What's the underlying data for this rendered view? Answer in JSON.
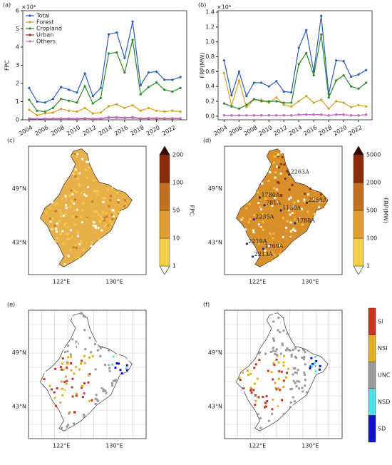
{
  "chart_data": [
    {
      "type": "line",
      "panel": "(a)",
      "ylabel": "FPC",
      "multiplier": "×10⁴",
      "x": [
        2004,
        2005,
        2006,
        2007,
        2008,
        2009,
        2010,
        2011,
        2012,
        2013,
        2014,
        2015,
        2016,
        2017,
        2018,
        2019,
        2020,
        2021,
        2022,
        2023
      ],
      "xlim": [
        2003.2,
        2023.8
      ],
      "xticks": [
        2004,
        2006,
        2008,
        2010,
        2012,
        2014,
        2016,
        2018,
        2020,
        2022
      ],
      "ylim": [
        0,
        6
      ],
      "yticks": [
        0,
        1,
        2,
        3,
        4,
        5,
        6
      ],
      "legend": "upper left",
      "series": [
        {
          "name": "Total",
          "color": "#2a5cbf",
          "values": [
            1.75,
            1.0,
            0.95,
            1.15,
            1.8,
            1.65,
            1.5,
            2.55,
            1.3,
            1.75,
            4.7,
            4.8,
            3.4,
            5.4,
            1.9,
            2.6,
            2.65,
            2.2,
            2.2,
            2.35
          ]
        },
        {
          "name": "Forest",
          "color": "#d4a020",
          "values": [
            0.55,
            0.25,
            0.35,
            0.4,
            0.6,
            0.5,
            0.45,
            0.65,
            0.35,
            0.4,
            0.75,
            0.85,
            0.65,
            0.8,
            0.5,
            0.65,
            0.5,
            0.45,
            0.5,
            0.45
          ]
        },
        {
          "name": "Cropland",
          "color": "#2a8a2a",
          "values": [
            1.1,
            0.5,
            0.45,
            0.65,
            1.15,
            1.05,
            0.95,
            1.85,
            0.9,
            1.2,
            3.65,
            3.7,
            2.6,
            4.4,
            1.4,
            1.8,
            2.05,
            1.65,
            1.55,
            1.75
          ]
        },
        {
          "name": "Urban",
          "color": "#8b3030",
          "values": [
            0.05,
            0.04,
            0.05,
            0.05,
            0.06,
            0.06,
            0.05,
            0.07,
            0.05,
            0.06,
            0.12,
            0.12,
            0.1,
            0.12,
            0.06,
            0.08,
            0.08,
            0.07,
            0.07,
            0.07
          ]
        },
        {
          "name": "Others",
          "color": "#c070d0",
          "values": [
            0.08,
            0.06,
            0.07,
            0.07,
            0.08,
            0.08,
            0.07,
            0.09,
            0.07,
            0.08,
            0.15,
            0.15,
            0.12,
            0.15,
            0.08,
            0.1,
            0.1,
            0.09,
            0.09,
            0.09
          ]
        }
      ]
    },
    {
      "type": "line",
      "panel": "(b)",
      "ylabel": "FRP(MW)",
      "multiplier": "×10⁶",
      "x": [
        2004,
        2005,
        2006,
        2007,
        2008,
        2009,
        2010,
        2011,
        2012,
        2013,
        2014,
        2015,
        2016,
        2017,
        2018,
        2019,
        2020,
        2021,
        2022,
        2023
      ],
      "xlim": [
        2003.2,
        2023.8
      ],
      "xticks": [
        2004,
        2006,
        2008,
        2010,
        2012,
        2014,
        2016,
        2018,
        2020,
        2022
      ],
      "ylim": [
        -0.05,
        1.42
      ],
      "yticks": [
        {
          "value": 0,
          "label": "0.0"
        },
        0.2,
        0.4,
        0.6,
        0.8,
        {
          "value": 1,
          "label": "1.0"
        },
        1.2,
        1.4
      ],
      "series": [
        {
          "name": "Total",
          "color": "#2a5cbf",
          "values": [
            0.75,
            0.28,
            0.6,
            0.27,
            0.45,
            0.45,
            0.4,
            0.47,
            0.33,
            0.32,
            0.92,
            1.16,
            0.6,
            1.35,
            0.3,
            0.75,
            0.74,
            0.53,
            0.56,
            0.62
          ]
        },
        {
          "name": "Forest",
          "color": "#d4a020",
          "values": [
            0.58,
            0.14,
            0.48,
            0.12,
            0.22,
            0.22,
            0.18,
            0.25,
            0.15,
            0.13,
            0.2,
            0.27,
            0.18,
            0.22,
            0.1,
            0.2,
            0.18,
            0.12,
            0.15,
            0.13
          ]
        },
        {
          "name": "Cropland",
          "color": "#2a8a2a",
          "values": [
            0.17,
            0.13,
            0.1,
            0.15,
            0.23,
            0.2,
            0.2,
            0.2,
            0.18,
            0.18,
            0.7,
            0.85,
            0.55,
            1.1,
            0.25,
            0.48,
            0.55,
            0.4,
            0.37,
            0.45
          ]
        },
        {
          "name": "Urban",
          "color": "#8b3030",
          "values": [
            0.01,
            0.01,
            0.01,
            0.01,
            0.01,
            0.01,
            0.01,
            0.01,
            0.01,
            0.01,
            0.02,
            0.02,
            0.02,
            0.02,
            0.01,
            0.02,
            0.02,
            0.01,
            0.01,
            0.02
          ]
        },
        {
          "name": "Others",
          "color": "#c070d0",
          "values": [
            0.01,
            0.01,
            0.01,
            0.01,
            0.01,
            0.01,
            0.01,
            0.01,
            0.01,
            0.01,
            0.02,
            0.02,
            0.02,
            0.02,
            0.01,
            0.02,
            0.02,
            0.01,
            0.01,
            0.02
          ]
        }
      ]
    }
  ],
  "maps": {
    "panels": [
      "(c)",
      "(d)",
      "(e)",
      "(f)"
    ],
    "lat_labels": [
      "49°N",
      "43°N"
    ],
    "lon_labels": [
      "122°E",
      "130°E"
    ],
    "fpc_colorbar": {
      "label": "FPC",
      "ticks": [
        "1",
        "10",
        "50",
        "100",
        "200"
      ]
    },
    "frp_colorbar": {
      "label": "FRP(MW)",
      "ticks": [
        "1",
        "100",
        "500",
        "2000",
        "5000"
      ]
    },
    "trend_colorbar": {
      "classes": [
        "SD",
        "NSD",
        "UNC",
        "NSI",
        "SI"
      ]
    },
    "stations": [
      "2263A",
      "1780A",
      "781A",
      "1130A",
      "2258A",
      "2235A",
      "1788A",
      "2219A",
      "1769A",
      "2213A"
    ]
  }
}
